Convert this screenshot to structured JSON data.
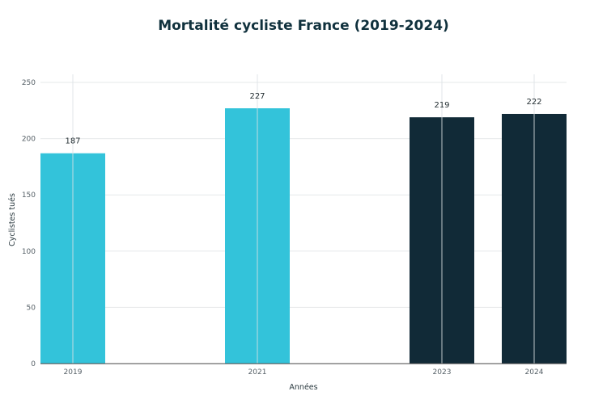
{
  "chart_data": {
    "type": "bar",
    "title": "Mortalité cycliste France (2019-2024)",
    "xlabel": "Années",
    "ylabel": "Cyclistes tués",
    "categories": [
      "2019",
      "2021",
      "2023",
      "2024"
    ],
    "x": [
      2019,
      2021,
      2023,
      2024
    ],
    "values": [
      187,
      227,
      219,
      222
    ],
    "bar_colors": [
      "#33c3da",
      "#33c3da",
      "#112a37",
      "#112a37"
    ],
    "ylim": [
      0,
      250
    ],
    "yticks": [
      "0",
      "50",
      "100",
      "150",
      "200",
      "250"
    ],
    "grid": true
  }
}
